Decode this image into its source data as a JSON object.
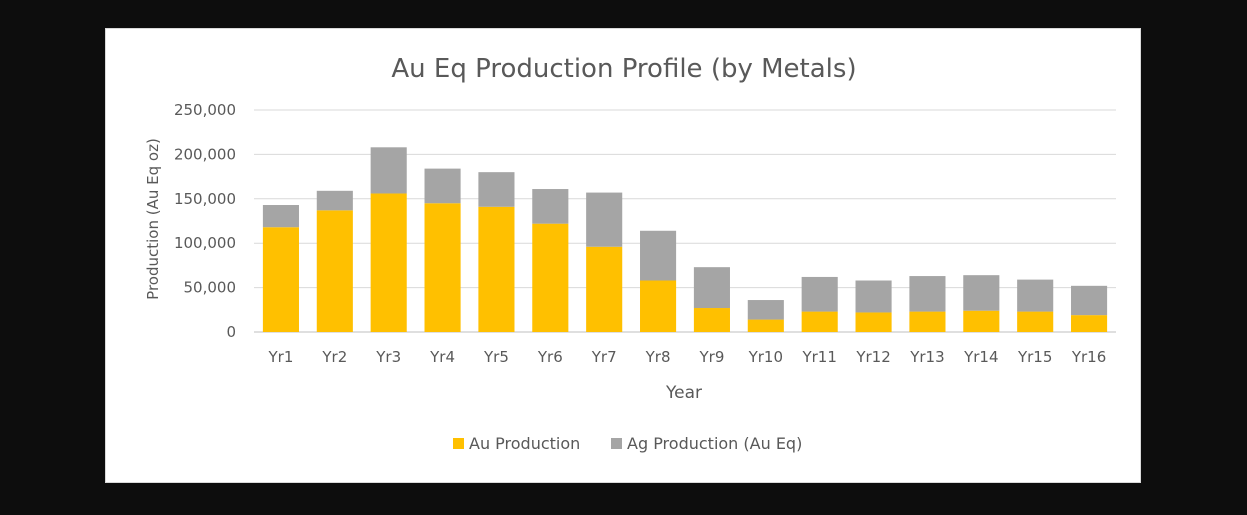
{
  "chart_data": {
    "type": "bar",
    "stacked": true,
    "title": "Au Eq Production Profile  (by Metals)",
    "xlabel": "Year",
    "ylabel": "Production (Au Eq oz)",
    "ylim": [
      0,
      250000
    ],
    "yticks": [
      0,
      50000,
      100000,
      150000,
      200000,
      250000
    ],
    "ytick_labels": [
      "0",
      "50,000",
      "100,000",
      "150,000",
      "200,000",
      "250,000"
    ],
    "grid": true,
    "legend_position": "bottom",
    "categories": [
      "Yr1",
      "Yr2",
      "Yr3",
      "Yr4",
      "Yr5",
      "Yr6",
      "Yr7",
      "Yr8",
      "Yr9",
      "Yr10",
      "Yr11",
      "Yr12",
      "Yr13",
      "Yr14",
      "Yr15",
      "Yr16"
    ],
    "series": [
      {
        "name": "Au Production",
        "color": "#ffc000",
        "values": [
          118000,
          137000,
          156000,
          145000,
          141000,
          122000,
          96000,
          58000,
          27000,
          14000,
          23000,
          22000,
          23000,
          24000,
          23000,
          19000
        ]
      },
      {
        "name": "Ag Production (Au Eq)",
        "color": "#a5a5a5",
        "values": [
          25000,
          22000,
          52000,
          39000,
          39000,
          39000,
          61000,
          56000,
          46000,
          22000,
          39000,
          36000,
          40000,
          40000,
          36000,
          33000
        ]
      }
    ]
  }
}
